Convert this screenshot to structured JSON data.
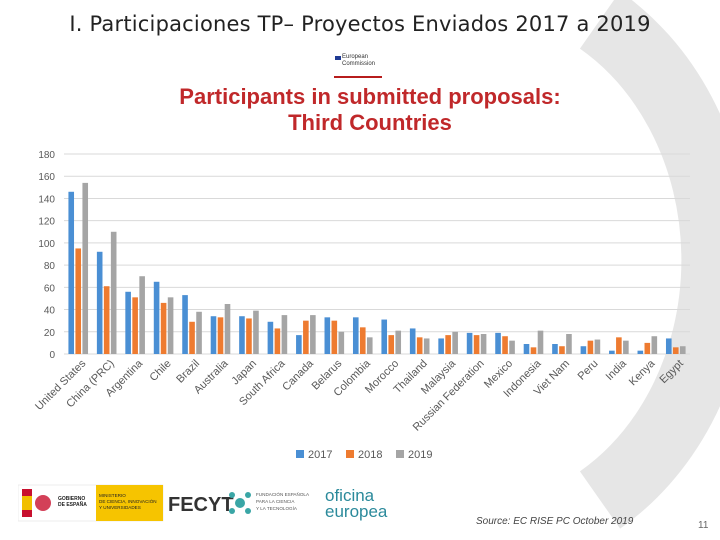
{
  "slide": {
    "title": "I. Participaciones TP– Proyectos Enviados 2017 a 2019",
    "page_number": "11",
    "source": "Source: EC RISE PC October 2019",
    "ec_logo_text": [
      "European",
      "Commission"
    ],
    "logos": {
      "gobierno": [
        "GOBIERNO",
        "DE ESPAÑA"
      ],
      "ministerio": [
        "MINISTERIO",
        "DE CIENCIA, INNOVACIÓN",
        "Y UNIVERSIDADES"
      ],
      "fecyt": "FECYT",
      "fecyt_sub": [
        "FUNDACIÓN ESPAÑOLA",
        "PARA LA CIENCIA",
        "Y LA TECNOLOGÍA"
      ],
      "oficina": [
        "oficina",
        "europea"
      ]
    }
  },
  "chart_data": {
    "type": "bar",
    "title_lines": [
      "Participants in submitted proposals:",
      "Third Countries"
    ],
    "categories": [
      "United States",
      "China (PRC)",
      "Argentina",
      "Chile",
      "Brazil",
      "Australia",
      "Japan",
      "South Africa",
      "Canada",
      "Belarus",
      "Colombia",
      "Morocco",
      "Thailand",
      "Malaysia",
      "Russian Federation",
      "Mexico",
      "Indonesia",
      "Viet Nam",
      "Peru",
      "India",
      "Kenya",
      "Egypt"
    ],
    "series": [
      {
        "name": "2017",
        "color": "#4a8fd4",
        "values": [
          146,
          92,
          56,
          65,
          53,
          34,
          34,
          29,
          17,
          33,
          33,
          31,
          23,
          14,
          19,
          19,
          9,
          9,
          7,
          3,
          3,
          14
        ]
      },
      {
        "name": "2018",
        "color": "#ee7b30",
        "values": [
          95,
          61,
          51,
          46,
          29,
          33,
          32,
          23,
          30,
          30,
          24,
          17,
          15,
          17,
          17,
          16,
          6,
          7,
          12,
          15,
          10,
          6
        ]
      },
      {
        "name": "2019",
        "color": "#a5a5a5",
        "values": [
          154,
          110,
          70,
          51,
          38,
          45,
          39,
          35,
          35,
          20,
          15,
          21,
          14,
          20,
          18,
          12,
          21,
          18,
          13,
          12,
          16,
          7
        ]
      }
    ],
    "y_ticks": [
      "0",
      "20",
      "40",
      "60",
      "80",
      "100",
      "120",
      "140",
      "160",
      "180"
    ],
    "ylim": [
      0,
      180
    ],
    "grid": true,
    "legend": "bottom"
  }
}
